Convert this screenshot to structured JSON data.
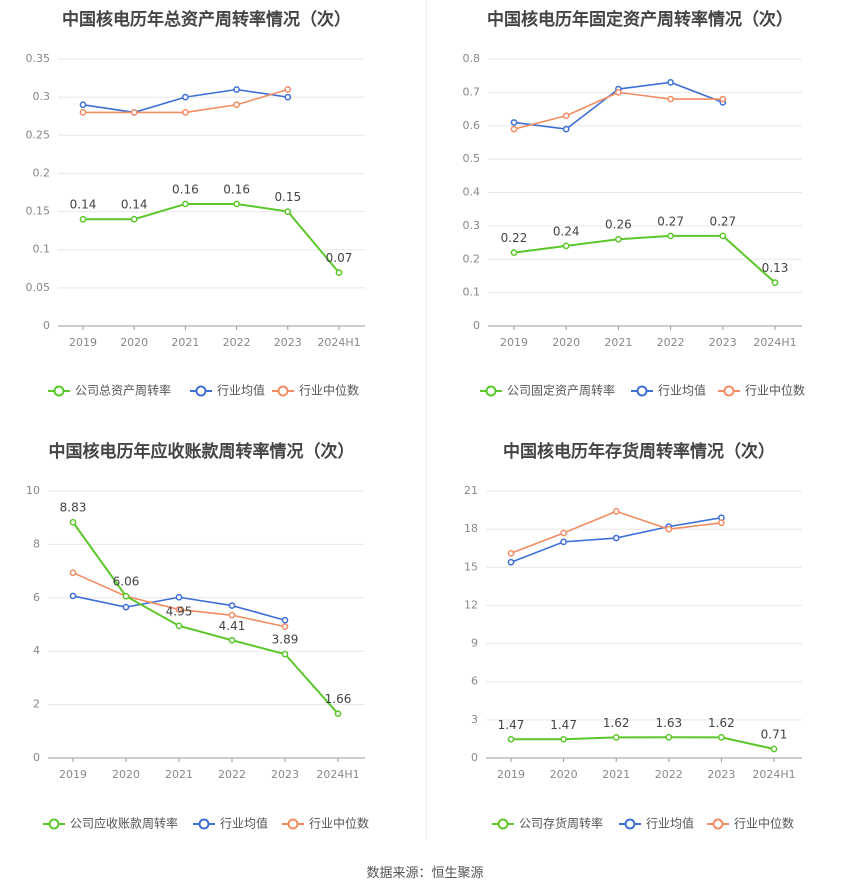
{
  "source": "数据来源：恒生聚源",
  "colors": {
    "company": "#5cc72a",
    "avg": "#3d6fd6",
    "median": "#f28c63"
  },
  "chart_data": [
    {
      "type": "line",
      "title": "中国核电历年总资产周转率情况（次）",
      "categories": [
        "2019",
        "2020",
        "2021",
        "2022",
        "2023",
        "2024H1"
      ],
      "ylim": [
        0,
        0.35
      ],
      "yticks": [
        "0",
        "0.05",
        "0.1",
        "0.15",
        "0.2",
        "0.25",
        "0.3",
        "0.35"
      ],
      "grid": true,
      "legend": "bottom",
      "series": [
        {
          "name": "公司总资产周转率",
          "role": "company",
          "values": [
            0.14,
            0.14,
            0.16,
            0.16,
            0.15,
            0.07
          ],
          "labels": [
            "0.14",
            "0.14",
            "0.16",
            "0.16",
            "0.15",
            "0.07"
          ]
        },
        {
          "name": "行业均值",
          "role": "avg",
          "values": [
            0.29,
            0.28,
            0.3,
            0.31,
            0.3,
            null
          ]
        },
        {
          "name": "行业中位数",
          "role": "median",
          "values": [
            0.28,
            0.28,
            0.28,
            0.29,
            0.31,
            null
          ]
        }
      ]
    },
    {
      "type": "line",
      "title": "中国核电历年固定资产周转率情况（次）",
      "categories": [
        "2019",
        "2020",
        "2021",
        "2022",
        "2023",
        "2024H1"
      ],
      "ylim": [
        0,
        0.8
      ],
      "yticks": [
        "0",
        "0.1",
        "0.2",
        "0.3",
        "0.4",
        "0.5",
        "0.6",
        "0.7",
        "0.8"
      ],
      "grid": true,
      "legend": "bottom",
      "series": [
        {
          "name": "公司固定资产周转率",
          "role": "company",
          "values": [
            0.22,
            0.24,
            0.26,
            0.27,
            0.27,
            0.13
          ],
          "labels": [
            "0.22",
            "0.24",
            "0.26",
            "0.27",
            "0.27",
            "0.13"
          ]
        },
        {
          "name": "行业均值",
          "role": "avg",
          "values": [
            0.61,
            0.59,
            0.71,
            0.73,
            0.67,
            null
          ]
        },
        {
          "name": "行业中位数",
          "role": "median",
          "values": [
            0.59,
            0.63,
            0.7,
            0.68,
            0.68,
            null
          ]
        }
      ]
    },
    {
      "type": "line",
      "title": "中国核电历年应收账款周转率情况（次）",
      "categories": [
        "2019",
        "2020",
        "2021",
        "2022",
        "2023",
        "2024H1"
      ],
      "ylim": [
        0,
        10
      ],
      "yticks": [
        "0",
        "2",
        "4",
        "6",
        "8",
        "10"
      ],
      "grid": true,
      "legend": "bottom",
      "series": [
        {
          "name": "公司应收账款周转率",
          "role": "company",
          "values": [
            8.83,
            6.06,
            4.95,
            4.41,
            3.89,
            1.66
          ],
          "labels": [
            "8.83",
            "6.06",
            "4.95",
            "4.41",
            "3.89",
            "1.66"
          ]
        },
        {
          "name": "行业均值",
          "role": "avg",
          "values": [
            6.07,
            5.65,
            6.02,
            5.71,
            5.16,
            null
          ]
        },
        {
          "name": "行业中位数",
          "role": "median",
          "values": [
            6.94,
            6.06,
            5.56,
            5.35,
            4.92,
            null
          ]
        }
      ]
    },
    {
      "type": "line",
      "title": "中国核电历年存货周转率情况（次）",
      "categories": [
        "2019",
        "2020",
        "2021",
        "2022",
        "2023",
        "2024H1"
      ],
      "ylim": [
        0,
        21
      ],
      "yticks": [
        "0",
        "3",
        "6",
        "9",
        "12",
        "15",
        "18",
        "21"
      ],
      "grid": true,
      "legend": "bottom",
      "series": [
        {
          "name": "公司存货周转率",
          "role": "company",
          "values": [
            1.47,
            1.47,
            1.62,
            1.63,
            1.62,
            0.71
          ],
          "labels": [
            "1.47",
            "1.47",
            "1.62",
            "1.63",
            "1.62",
            "0.71"
          ]
        },
        {
          "name": "行业均值",
          "role": "avg",
          "values": [
            15.4,
            17.0,
            17.3,
            18.2,
            18.9,
            null
          ]
        },
        {
          "name": "行业中位数",
          "role": "median",
          "values": [
            16.1,
            17.7,
            19.4,
            18.0,
            18.5,
            null
          ]
        }
      ]
    }
  ]
}
